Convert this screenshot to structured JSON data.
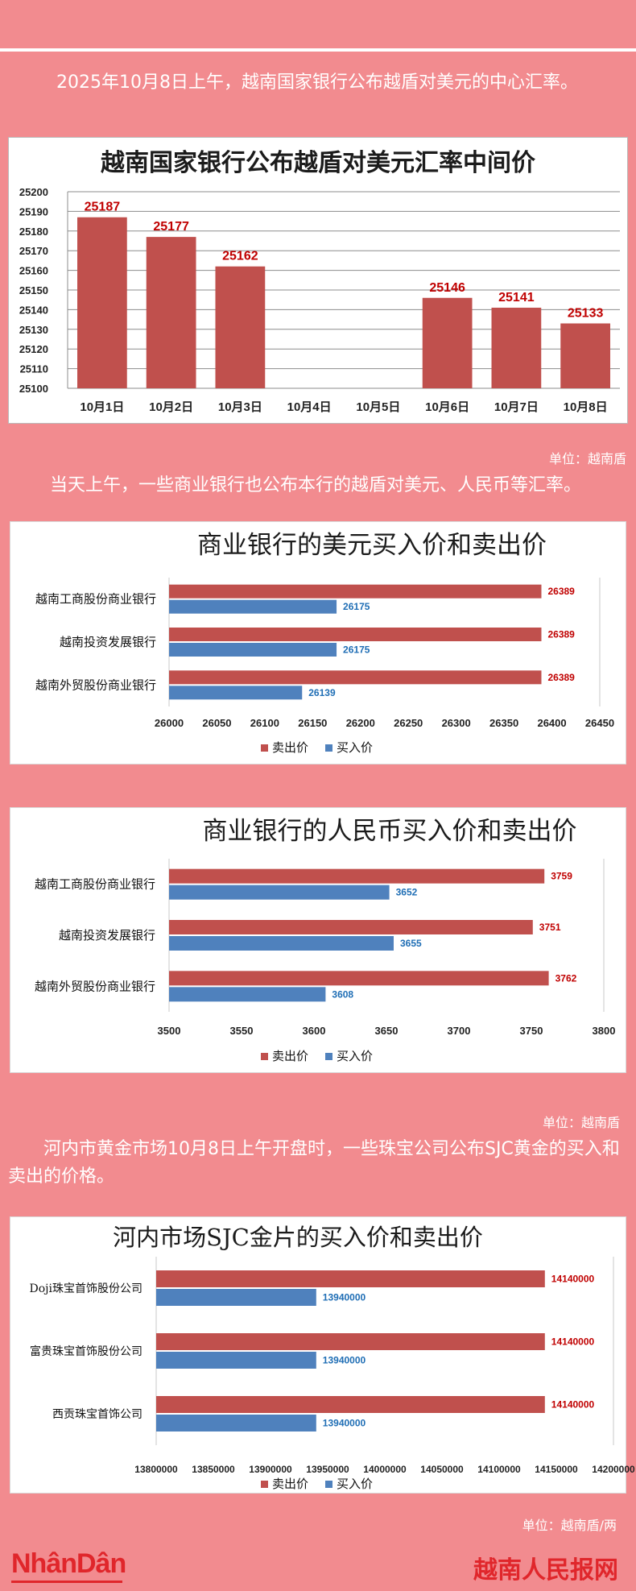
{
  "intro1": "2025年10月8日上午，越南国家银行公布越盾对美元的中心汇率。",
  "unit1": "单位：越南盾",
  "intro2": "当天上午，一些商业银行也公布本行的越盾对美元、人民币等汇率。",
  "unit2": "单位：越南盾",
  "intro3": "河内市黄金市场10月8日上午开盘时，一些珠宝公司公布SJC黄金的买入和卖出的价格。",
  "unit3": "单位：越南盾/两",
  "brand_left": "NhânDân",
  "brand_right": "越南人民报网",
  "colors": {
    "sell": "#c0504d",
    "buy": "#4f81bd",
    "background": "#f28b8f"
  },
  "chart_data": [
    {
      "type": "bar",
      "title": "越南国家银行公布越盾对美元汇率中间价",
      "categories": [
        "10月1日",
        "10月2日",
        "10月3日",
        "10月4日",
        "10月5日",
        "10月6日",
        "10月7日",
        "10月8日"
      ],
      "values": [
        25187,
        25177,
        25162,
        null,
        null,
        25146,
        25141,
        25133
      ],
      "value_labels": [
        "25187",
        "25177",
        "25162",
        "",
        "",
        "25146",
        "25141",
        "25133"
      ],
      "ylim": [
        25100,
        25200
      ],
      "yticks": [
        "25100",
        "25110",
        "25120",
        "25130",
        "25140",
        "25150",
        "25160",
        "25170",
        "25180",
        "25190",
        "25200"
      ],
      "grid": true
    },
    {
      "type": "bar",
      "orientation": "horizontal",
      "title": "商业银行的美元买入价和卖出价",
      "categories": [
        "越南工商股份商业银行",
        "越南投资发展银行",
        "越南外贸股份商业银行"
      ],
      "series": [
        {
          "name": "卖出价",
          "values": [
            26389,
            26389,
            26389
          ],
          "labels": [
            "26389",
            "26389",
            "26389"
          ]
        },
        {
          "name": "买入价",
          "values": [
            26175,
            26175,
            26139
          ],
          "labels": [
            "26175",
            "26175",
            "26139"
          ]
        }
      ],
      "xlim": [
        26000,
        26450
      ],
      "xticks": [
        "26000",
        "26050",
        "26100",
        "26150",
        "26200",
        "26250",
        "26300",
        "26350",
        "26400",
        "26450"
      ],
      "legend": "bottom"
    },
    {
      "type": "bar",
      "orientation": "horizontal",
      "title": "商业银行的人民币买入价和卖出价",
      "categories": [
        "越南工商股份商业银行",
        "越南投资发展银行",
        "越南外贸股份商业银行"
      ],
      "series": [
        {
          "name": "卖出价",
          "values": [
            3759,
            3751,
            3762
          ],
          "labels": [
            "3759",
            "3751",
            "3762"
          ]
        },
        {
          "name": "买入价",
          "values": [
            3652,
            3655,
            3608
          ],
          "labels": [
            "3652",
            "3655",
            "3608"
          ]
        }
      ],
      "xlim": [
        3500,
        3800
      ],
      "xticks": [
        "3500",
        "3550",
        "3600",
        "3650",
        "3700",
        "3750",
        "3800"
      ],
      "legend": "bottom"
    },
    {
      "type": "bar",
      "orientation": "horizontal",
      "title": "河内市场SJC金片的买入价和卖出价",
      "categories": [
        "Doji珠宝首饰股份公司",
        "富贵珠宝首饰股份公司",
        "西贡珠宝首饰公司"
      ],
      "series": [
        {
          "name": "卖出价",
          "values": [
            14140000,
            14140000,
            14140000
          ],
          "labels": [
            "14140000",
            "14140000",
            "14140000"
          ]
        },
        {
          "name": "买入价",
          "values": [
            13940000,
            13940000,
            13940000
          ],
          "labels": [
            "13940000",
            "13940000",
            "13940000"
          ]
        }
      ],
      "xlim": [
        13800000,
        14200000
      ],
      "xticks": [
        "13800000",
        "13850000",
        "13900000",
        "13950000",
        "14000000",
        "14050000",
        "14100000",
        "14150000",
        "14200000"
      ],
      "legend": "bottom"
    }
  ]
}
